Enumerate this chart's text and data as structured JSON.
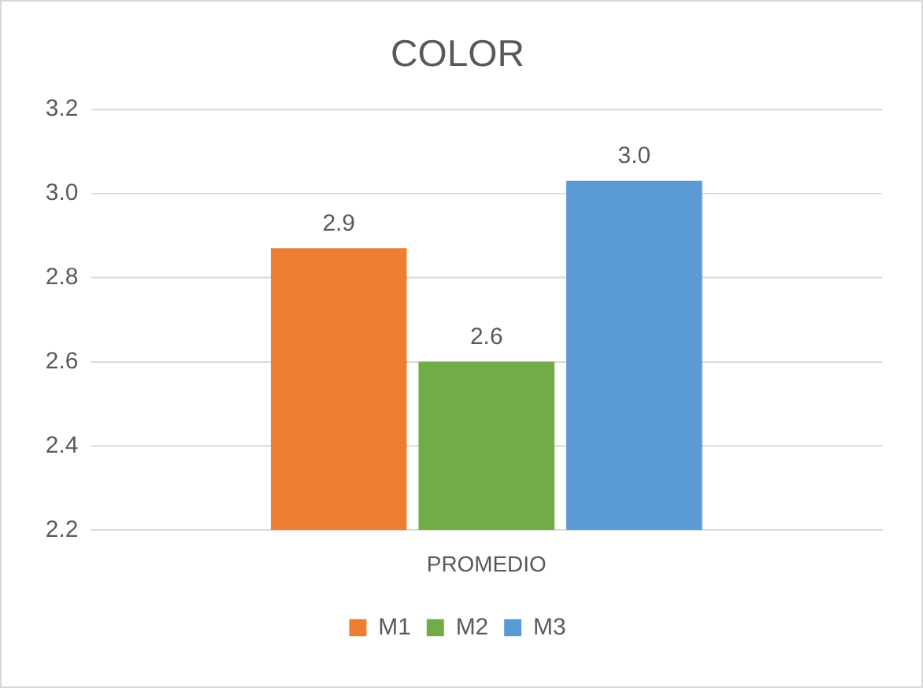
{
  "chart_data": {
    "type": "bar",
    "title": "COLOR",
    "categories": [
      "PROMEDIO"
    ],
    "series": [
      {
        "name": "M1",
        "color": "#ed7d31",
        "values": [
          2.87
        ],
        "value_labels": [
          "2.9"
        ]
      },
      {
        "name": "M2",
        "color": "#70ad47",
        "values": [
          2.6
        ],
        "value_labels": [
          "2.6"
        ]
      },
      {
        "name": "M3",
        "color": "#5b9bd5",
        "values": [
          3.03
        ],
        "value_labels": [
          "3.0"
        ]
      }
    ],
    "ylim": [
      2.2,
      3.2
    ],
    "yticks": [
      2.2,
      2.4,
      2.6,
      2.8,
      {
        "value": 3,
        "label": "3.0"
      },
      3.2
    ],
    "grid": "y",
    "legend": "bottom"
  }
}
